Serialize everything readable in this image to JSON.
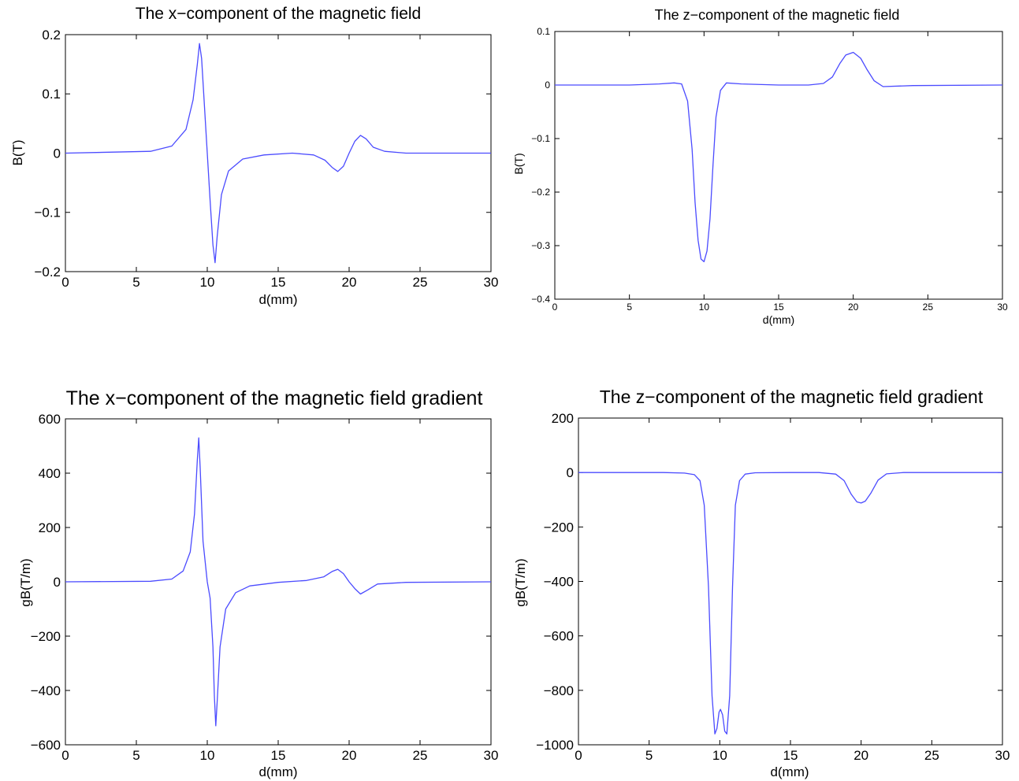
{
  "line_color": "#4b4bff",
  "chart_data": [
    {
      "type": "line",
      "title": "The x−component of the magnetic field",
      "xlabel": "d(mm)",
      "ylabel": "B(T)",
      "xlim": [
        0,
        30
      ],
      "ylim": [
        -0.2,
        0.2
      ],
      "xticks": [
        0,
        5,
        10,
        15,
        20,
        25,
        30
      ],
      "xtick_labels": [
        "0",
        "5",
        "10",
        "15",
        "20",
        "25",
        "30"
      ],
      "yticks": [
        -0.2,
        -0.1,
        0,
        0.1,
        0.2
      ],
      "ytick_labels": [
        "−0.2",
        "−0.1",
        "0",
        "0.1",
        "0.2"
      ],
      "grid": false,
      "series": [
        {
          "x": [
            0,
            6,
            7.5,
            8.5,
            9.0,
            9.3,
            9.45,
            9.6,
            9.8,
            10.0,
            10.2,
            10.4,
            10.55,
            10.7,
            11.0,
            11.5,
            12.5,
            14,
            16,
            17.5,
            18.3,
            18.8,
            19.2,
            19.6,
            20.0,
            20.4,
            20.8,
            21.2,
            21.7,
            22.5,
            24,
            30
          ],
          "y": [
            0,
            0.003,
            0.012,
            0.04,
            0.09,
            0.15,
            0.185,
            0.16,
            0.08,
            0.0,
            -0.08,
            -0.155,
            -0.185,
            -0.14,
            -0.07,
            -0.03,
            -0.01,
            -0.003,
            0.0,
            -0.003,
            -0.012,
            -0.024,
            -0.031,
            -0.022,
            0.0,
            0.02,
            0.03,
            0.024,
            0.01,
            0.003,
            0.0,
            0.0
          ]
        }
      ]
    },
    {
      "type": "line",
      "title": "The z−component of the magnetic field",
      "xlabel": "d(mm)",
      "ylabel": "B(T)",
      "xlim": [
        0,
        30
      ],
      "ylim": [
        -0.4,
        0.1
      ],
      "xticks": [
        0,
        5,
        10,
        15,
        20,
        25,
        30
      ],
      "xtick_labels": [
        "0",
        "5",
        "10",
        "15",
        "20",
        "25",
        "30"
      ],
      "yticks": [
        -0.4,
        -0.3,
        -0.2,
        -0.1,
        0,
        0.1
      ],
      "ytick_labels": [
        "−0.4",
        "−0.3",
        "−0.2",
        "−0.1",
        "0",
        "0.1"
      ],
      "grid": false,
      "series": [
        {
          "x": [
            0,
            5,
            7,
            8,
            8.5,
            8.9,
            9.2,
            9.4,
            9.6,
            9.8,
            10.0,
            10.2,
            10.4,
            10.6,
            10.8,
            11.1,
            11.5,
            12.5,
            15,
            17,
            18,
            18.6,
            19.1,
            19.5,
            20.0,
            20.5,
            20.9,
            21.4,
            22,
            24,
            30
          ],
          "y": [
            0,
            0.0,
            0.002,
            0.004,
            0.002,
            -0.03,
            -0.12,
            -0.22,
            -0.29,
            -0.325,
            -0.33,
            -0.31,
            -0.25,
            -0.15,
            -0.06,
            -0.01,
            0.004,
            0.002,
            0.0,
            0.0,
            0.003,
            0.015,
            0.04,
            0.056,
            0.061,
            0.05,
            0.03,
            0.008,
            -0.003,
            -0.001,
            0.0
          ]
        }
      ]
    },
    {
      "type": "line",
      "title": "The x−component of the magnetic field gradient",
      "xlabel": "d(mm)",
      "ylabel": "gB(T/m)",
      "xlim": [
        0,
        30
      ],
      "ylim": [
        -600,
        600
      ],
      "xticks": [
        0,
        5,
        10,
        15,
        20,
        25,
        30
      ],
      "xtick_labels": [
        "0",
        "5",
        "10",
        "15",
        "20",
        "25",
        "30"
      ],
      "yticks": [
        -600,
        -400,
        -200,
        0,
        200,
        400,
        600
      ],
      "ytick_labels": [
        "−600",
        "−400",
        "−200",
        "0",
        "200",
        "400",
        "600"
      ],
      "grid": false,
      "series": [
        {
          "x": [
            0,
            6,
            7.5,
            8.3,
            8.8,
            9.1,
            9.3,
            9.4,
            9.5,
            9.7,
            10.0,
            10.2,
            10.4,
            10.5,
            10.6,
            10.7,
            10.9,
            11.3,
            12,
            13,
            15,
            17,
            18.2,
            18.8,
            19.2,
            19.6,
            20.0,
            20.4,
            20.8,
            21.3,
            22,
            24,
            30
          ],
          "y": [
            0,
            2,
            10,
            40,
            110,
            250,
            450,
            530,
            420,
            150,
            0,
            -60,
            -240,
            -420,
            -530,
            -440,
            -240,
            -100,
            -40,
            -15,
            -2,
            5,
            18,
            38,
            46,
            30,
            0,
            -25,
            -45,
            -30,
            -8,
            -2,
            0
          ]
        }
      ]
    },
    {
      "type": "line",
      "title": "The z−component of the magnetic field gradient",
      "xlabel": "d(mm)",
      "ylabel": "gB(T/m)",
      "xlim": [
        0,
        30
      ],
      "ylim": [
        -1000,
        200
      ],
      "xticks": [
        0,
        5,
        10,
        15,
        20,
        25,
        30
      ],
      "xtick_labels": [
        "0",
        "5",
        "10",
        "15",
        "20",
        "25",
        "30"
      ],
      "yticks": [
        -1000,
        -800,
        -600,
        -400,
        -200,
        0,
        200
      ],
      "ytick_labels": [
        "−1000",
        "−800",
        "−600",
        "−400",
        "−200",
        "0",
        "200"
      ],
      "grid": false,
      "series": [
        {
          "x": [
            0,
            6,
            7.5,
            8.2,
            8.6,
            8.9,
            9.2,
            9.45,
            9.65,
            9.8,
            9.95,
            10.05,
            10.2,
            10.35,
            10.5,
            10.7,
            10.9,
            11.1,
            11.4,
            11.8,
            12.5,
            15,
            17,
            18.2,
            18.8,
            19.3,
            19.7,
            20.0,
            20.3,
            20.7,
            21.2,
            21.8,
            23,
            30
          ],
          "y": [
            0,
            0,
            -2,
            -8,
            -30,
            -120,
            -420,
            -820,
            -960,
            -940,
            -880,
            -870,
            -890,
            -950,
            -960,
            -820,
            -420,
            -120,
            -30,
            -6,
            -1,
            0,
            0,
            -6,
            -30,
            -80,
            -108,
            -112,
            -105,
            -75,
            -28,
            -5,
            0,
            0
          ]
        }
      ]
    }
  ]
}
